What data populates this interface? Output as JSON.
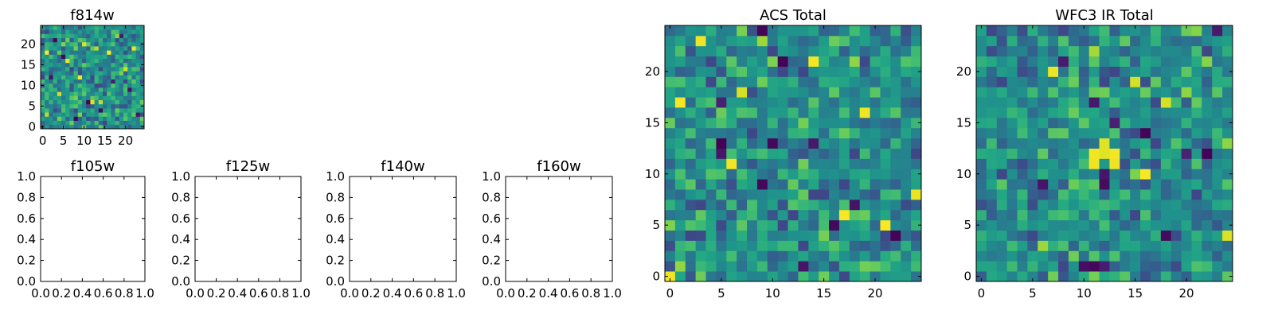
{
  "chart_data": [
    {
      "type": "heatmap",
      "title": "f814w",
      "size": 25,
      "xlim": [
        -0.5,
        24.5
      ],
      "ylim": [
        -0.5,
        24.5
      ],
      "xticks": [
        0,
        5,
        10,
        15,
        20
      ],
      "yticks": [
        0,
        5,
        10,
        15,
        20
      ],
      "colormap": "viridis",
      "seed": 11,
      "dark_cells": [
        [
          3,
          21
        ],
        [
          8,
          2
        ],
        [
          14,
          4
        ],
        [
          17,
          11
        ],
        [
          21,
          9
        ],
        [
          5,
          17
        ],
        [
          19,
          22
        ],
        [
          11,
          6
        ],
        [
          23,
          3
        ],
        [
          2,
          12
        ]
      ],
      "bright_cells": [
        [
          1,
          18
        ],
        [
          6,
          16
        ],
        [
          10,
          20
        ],
        [
          16,
          18
        ],
        [
          12,
          6
        ],
        [
          20,
          14
        ],
        [
          4,
          8
        ],
        [
          22,
          19
        ],
        [
          9,
          12
        ]
      ]
    },
    {
      "type": "heatmap",
      "title": "ACS Total",
      "size": 25,
      "xlim": [
        -0.5,
        24.5
      ],
      "ylim": [
        -0.5,
        24.5
      ],
      "xticks": [
        0,
        5,
        10,
        15,
        20
      ],
      "yticks": [
        0,
        5,
        10,
        15,
        20
      ],
      "colormap": "viridis",
      "seed": 29,
      "dark_cells": [
        [
          9,
          24
        ],
        [
          5,
          17
        ],
        [
          5,
          12
        ],
        [
          5,
          13
        ],
        [
          10,
          13
        ],
        [
          14,
          13
        ],
        [
          13,
          1
        ],
        [
          16,
          5
        ],
        [
          22,
          4
        ],
        [
          9,
          9
        ],
        [
          18,
          7
        ],
        [
          11,
          21
        ]
      ],
      "bright_cells": [
        [
          0,
          0
        ],
        [
          1,
          17
        ],
        [
          3,
          23
        ],
        [
          14,
          21
        ],
        [
          19,
          16
        ],
        [
          6,
          11
        ],
        [
          17,
          6
        ],
        [
          21,
          5
        ],
        [
          24,
          8
        ],
        [
          7,
          18
        ]
      ]
    },
    {
      "type": "heatmap",
      "title": "WFC3 IR Total",
      "size": 25,
      "xlim": [
        -0.5,
        24.5
      ],
      "ylim": [
        -0.5,
        24.5
      ],
      "xticks": [
        0,
        5,
        10,
        15,
        20
      ],
      "yticks": [
        0,
        5,
        10,
        15,
        20
      ],
      "colormap": "viridis",
      "seed": 47,
      "dark_cells": [
        [
          23,
          24
        ],
        [
          10,
          1
        ],
        [
          11,
          1
        ],
        [
          12,
          1
        ],
        [
          12,
          10
        ],
        [
          12,
          9
        ],
        [
          11,
          17
        ],
        [
          13,
          15
        ],
        [
          16,
          14
        ],
        [
          20,
          12
        ],
        [
          22,
          12
        ],
        [
          6,
          9
        ],
        [
          18,
          4
        ],
        [
          8,
          21
        ]
      ],
      "bright_cells": [
        [
          11,
          12
        ],
        [
          12,
          12
        ],
        [
          13,
          12
        ],
        [
          12,
          13
        ],
        [
          11,
          11
        ],
        [
          13,
          11
        ],
        [
          16,
          10
        ],
        [
          15,
          19
        ],
        [
          24,
          4
        ],
        [
          18,
          17
        ],
        [
          7,
          20
        ]
      ]
    },
    {
      "type": "empty",
      "title": "f105w",
      "xlim": [
        0,
        1
      ],
      "ylim": [
        0,
        1
      ],
      "xticks": [
        "0.0",
        "0.2",
        "0.4",
        "0.6",
        "0.8",
        "1.0"
      ],
      "yticks": [
        "0.0",
        "0.2",
        "0.4",
        "0.6",
        "0.8",
        "1.0"
      ]
    },
    {
      "type": "empty",
      "title": "f125w",
      "xlim": [
        0,
        1
      ],
      "ylim": [
        0,
        1
      ],
      "xticks": [
        "0.0",
        "0.2",
        "0.4",
        "0.6",
        "0.8",
        "1.0"
      ],
      "yticks": [
        "0.0",
        "0.2",
        "0.4",
        "0.6",
        "0.8",
        "1.0"
      ]
    },
    {
      "type": "empty",
      "title": "f140w",
      "xlim": [
        0,
        1
      ],
      "ylim": [
        0,
        1
      ],
      "xticks": [
        "0.0",
        "0.2",
        "0.4",
        "0.6",
        "0.8",
        "1.0"
      ],
      "yticks": [
        "0.0",
        "0.2",
        "0.4",
        "0.6",
        "0.8",
        "1.0"
      ]
    },
    {
      "type": "empty",
      "title": "f160w",
      "xlim": [
        0,
        1
      ],
      "ylim": [
        0,
        1
      ],
      "xticks": [
        "0.0",
        "0.2",
        "0.4",
        "0.6",
        "0.8",
        "1.0"
      ],
      "yticks": [
        "0.0",
        "0.2",
        "0.4",
        "0.6",
        "0.8",
        "1.0"
      ]
    }
  ]
}
